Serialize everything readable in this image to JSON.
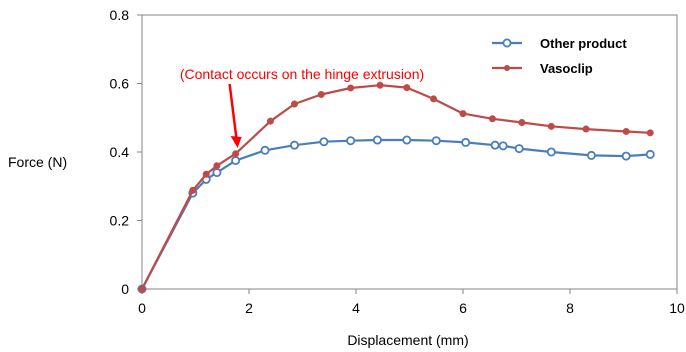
{
  "chart_data": {
    "type": "line",
    "title": "",
    "xlabel": "Displacement (mm)",
    "ylabel": "Force (N)",
    "xlim": [
      0,
      10
    ],
    "ylim": [
      0,
      0.8
    ],
    "xticks": [
      0,
      2,
      4,
      6,
      8,
      10
    ],
    "yticks": [
      0,
      0.2,
      0.4,
      0.6,
      0.8
    ],
    "xtick_labels": [
      "0",
      "2",
      "4",
      "6",
      "8",
      "10"
    ],
    "ytick_labels": [
      "0",
      "0.2",
      "0.4",
      "0.6",
      "0.8"
    ],
    "grid": false,
    "legend_position": "top-right",
    "annotation": {
      "text": "(Contact occurs on the hinge extrusion)",
      "color": "#ff0000",
      "target_x": 1.75,
      "target_y": 0.4
    },
    "series": [
      {
        "name": "Other product",
        "color": "#4a7ebb",
        "marker": "open-circle",
        "x": [
          0,
          0.95,
          1.2,
          1.4,
          1.75,
          2.3,
          2.85,
          3.4,
          3.9,
          4.4,
          4.95,
          5.5,
          6.05,
          6.6,
          6.75,
          7.05,
          7.65,
          8.4,
          9.05,
          9.5
        ],
        "y": [
          0,
          0.28,
          0.32,
          0.34,
          0.375,
          0.405,
          0.42,
          0.43,
          0.433,
          0.435,
          0.435,
          0.433,
          0.428,
          0.42,
          0.418,
          0.41,
          0.4,
          0.39,
          0.388,
          0.393
        ]
      },
      {
        "name": "Vasoclip",
        "color": "#be4b48",
        "marker": "filled-circle",
        "x": [
          0,
          0.95,
          1.2,
          1.4,
          1.75,
          2.4,
          2.85,
          3.35,
          3.9,
          4.45,
          4.95,
          5.45,
          6.0,
          6.55,
          7.1,
          7.65,
          8.3,
          9.05,
          9.5
        ],
        "y": [
          0,
          0.288,
          0.335,
          0.36,
          0.395,
          0.49,
          0.54,
          0.568,
          0.587,
          0.595,
          0.588,
          0.555,
          0.512,
          0.497,
          0.486,
          0.475,
          0.467,
          0.46,
          0.456
        ]
      }
    ]
  }
}
